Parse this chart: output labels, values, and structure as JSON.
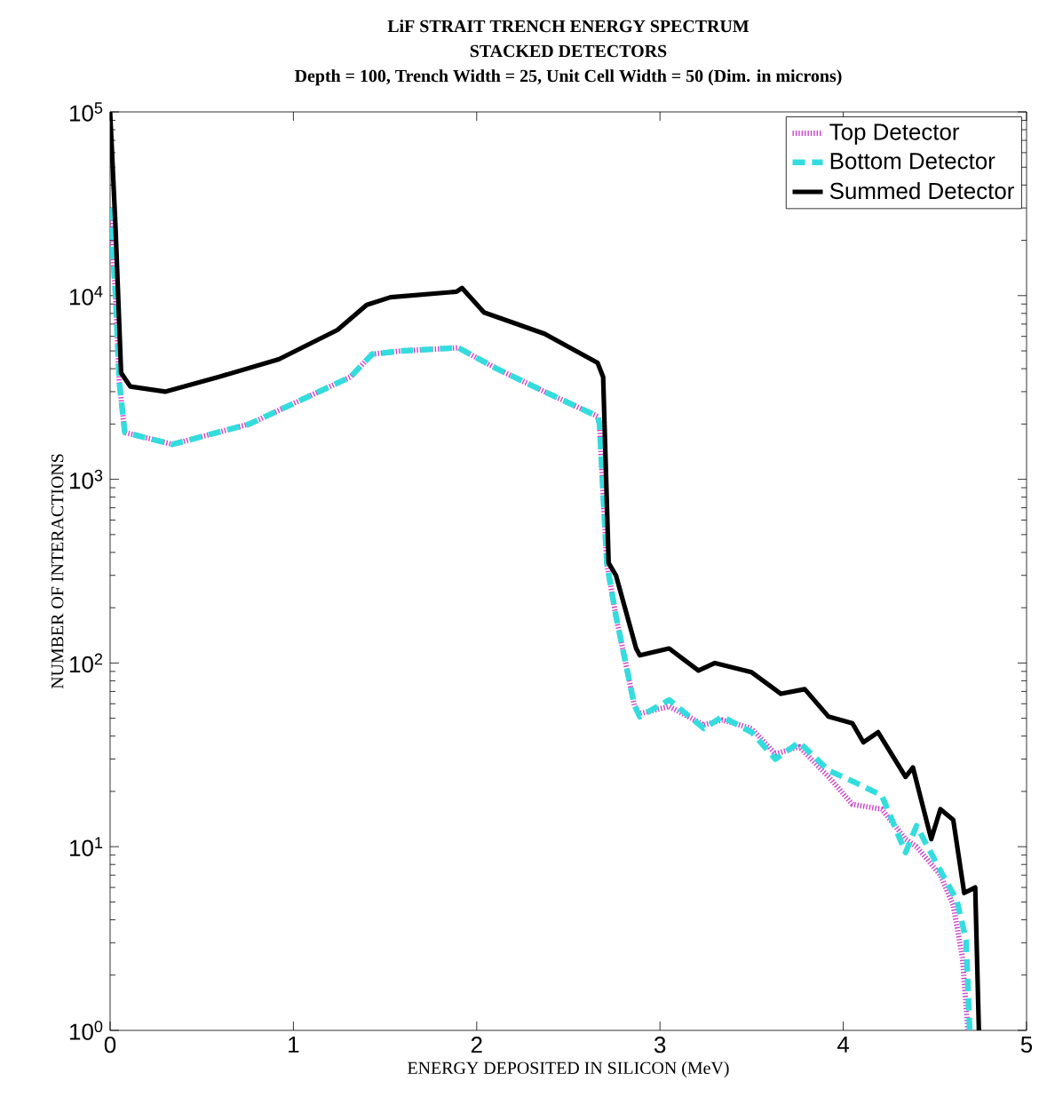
{
  "chart_data": {
    "type": "line",
    "title": "LiF STRAIT TRENCH ENERGY SPECTRUM",
    "subtitle": "STACKED DETECTORS",
    "annotations": [
      "Depth = 100, Trench Width = 25, Unit Cell Width = 50 (Dim. in microns)"
    ],
    "xlabel": "ENERGY DEPOSITED IN SILICON (MeV)",
    "ylabel": "NUMBER OF INTERACTIONS",
    "xlim": [
      0,
      5
    ],
    "ylim": [
      1,
      100000
    ],
    "log": "y",
    "xticks": [
      0,
      1,
      2,
      3,
      4,
      5
    ],
    "yticks": [
      {
        "value": 1,
        "label": "10$^{0}$"
      },
      {
        "value": 10,
        "label": "10$^{1}$"
      },
      {
        "value": 100,
        "label": "10$^{2}$"
      },
      {
        "value": 1000,
        "label": "10$^{3}$"
      },
      {
        "value": 10000,
        "label": "10$^{4}$"
      },
      {
        "value": 100000,
        "label": "10$^{5}$"
      }
    ],
    "grid": false,
    "legend": "top right",
    "marker": "none",
    "series": [
      {
        "name": "Top Detector",
        "color": "#cc44cc",
        "line_style": "dotted",
        "x": [
          0,
          0.03,
          0.05,
          0.08,
          0.34,
          0.76,
          1.17,
          1.31,
          1.43,
          1.59,
          1.9,
          2.11,
          2.37,
          2.66,
          2.67,
          2.71,
          2.76,
          2.86,
          2.89,
          3.05,
          3.24,
          3.34,
          3.5,
          3.63,
          3.76,
          3.92,
          4.05,
          4.21,
          4.34,
          4.4,
          4.53,
          4.6,
          4.65,
          4.68
        ],
        "values": [
          30000,
          10000,
          3400,
          1800,
          1550,
          2000,
          3100,
          3600,
          4800,
          5000,
          5200,
          4000,
          3000,
          2200,
          2000,
          350,
          180,
          59,
          53,
          58,
          46,
          49,
          44,
          32,
          35,
          24,
          17,
          16,
          11,
          10,
          7,
          4.8,
          2.5,
          1
        ]
      },
      {
        "name": "Bottom Detector",
        "color": "#33dddd",
        "line_style": "dashed",
        "x": [
          0,
          0.03,
          0.05,
          0.08,
          0.34,
          0.76,
          1.17,
          1.31,
          1.43,
          1.59,
          1.9,
          2.11,
          2.37,
          2.66,
          2.67,
          2.71,
          2.76,
          2.86,
          2.89,
          3.05,
          3.24,
          3.34,
          3.5,
          3.63,
          3.76,
          3.92,
          4.08,
          4.21,
          4.34,
          4.4,
          4.53,
          4.62,
          4.67,
          4.69
        ],
        "values": [
          30000,
          10000,
          3400,
          1800,
          1550,
          2000,
          3100,
          3600,
          4800,
          5000,
          5200,
          4000,
          3000,
          2200,
          2000,
          350,
          180,
          59,
          51,
          63,
          44,
          51,
          42,
          30,
          37,
          26,
          22,
          19,
          9.3,
          13,
          7.4,
          5.1,
          3.1,
          1
        ]
      },
      {
        "name": "Summed Detector",
        "color": "#000000",
        "line_style": "solid",
        "x": [
          0,
          0.03,
          0.06,
          0.11,
          0.3,
          0.59,
          0.92,
          1.24,
          1.4,
          1.53,
          1.89,
          1.92,
          2.04,
          2.37,
          2.66,
          2.69,
          2.72,
          2.76,
          2.87,
          2.89,
          3.05,
          3.21,
          3.3,
          3.5,
          3.66,
          3.79,
          3.92,
          4.05,
          4.11,
          4.19,
          4.34,
          4.38,
          4.48,
          4.53,
          4.6,
          4.66,
          4.72,
          4.74
        ],
        "values": [
          100000,
          23000,
          3800,
          3200,
          3000,
          3600,
          4500,
          6500,
          8900,
          9800,
          10500,
          11000,
          8100,
          6200,
          4300,
          3600,
          350,
          300,
          120,
          110,
          120,
          91,
          100,
          89,
          68,
          72,
          51,
          47,
          37,
          42,
          24,
          27,
          11,
          16,
          14,
          5.6,
          6,
          1
        ]
      }
    ]
  }
}
